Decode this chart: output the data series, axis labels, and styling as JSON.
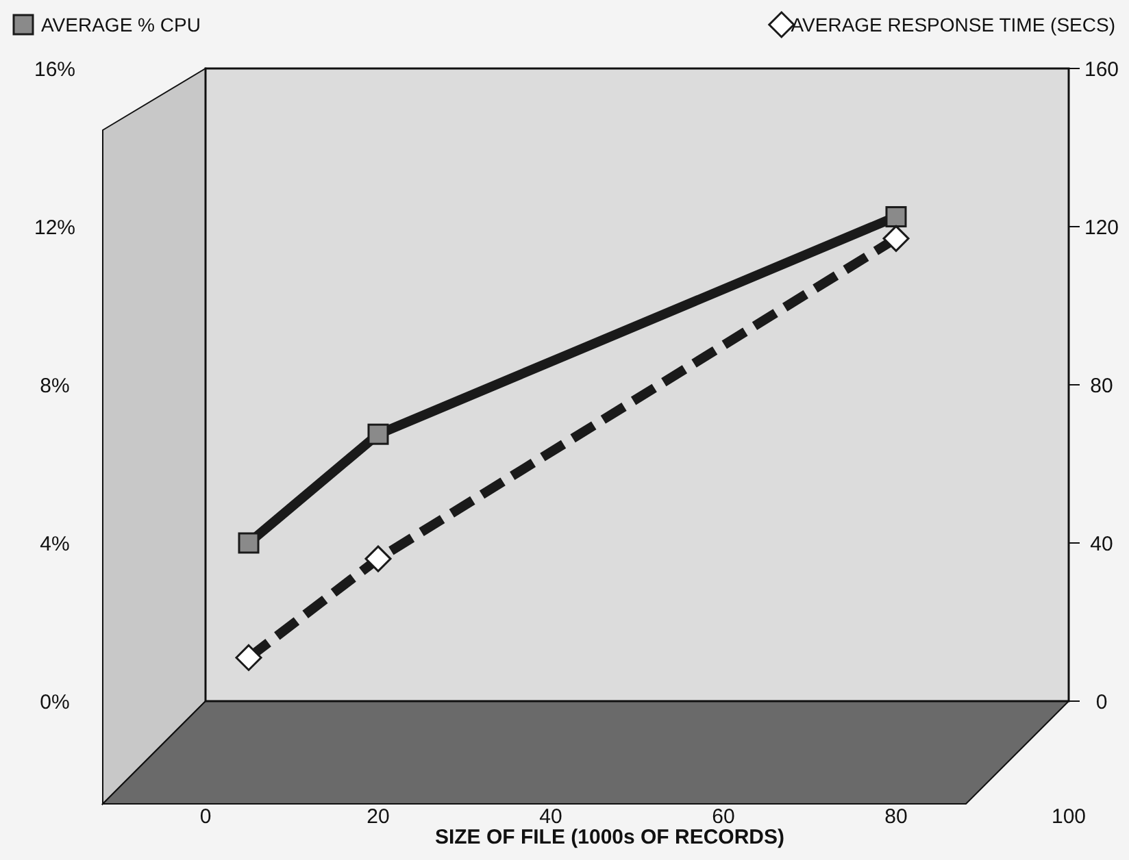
{
  "chart_data": {
    "type": "line",
    "xlabel": "SIZE OF FILE (1000s OF RECORDS)",
    "x": [
      5,
      20,
      80
    ],
    "series": [
      {
        "name": "AVERAGE % CPU",
        "color": "#1a1a1a",
        "values": [
          4,
          6.75,
          12.25
        ],
        "marker": "square",
        "line_style": "solid"
      },
      {
        "name": "AVERAGE RESPONSE TIME (SECS)",
        "color": "#1a1a1a",
        "values": [
          11,
          36,
          117
        ],
        "marker": "diamond",
        "line_style": "dashed",
        "axis": "y2"
      }
    ],
    "xlim": [
      0,
      100
    ],
    "xticks": [
      0,
      20,
      40,
      60,
      80,
      100
    ],
    "ylim": [
      0,
      16
    ],
    "yticks": [
      {
        "value": 0,
        "label": "0%"
      },
      {
        "value": 4,
        "label": "4%"
      },
      {
        "value": 8,
        "label": "8%"
      },
      {
        "value": 12,
        "label": "12%"
      },
      {
        "value": 16,
        "label": "16%"
      }
    ],
    "y2lim": [
      0,
      160
    ],
    "y2ticks": [
      0,
      40,
      80,
      120,
      160
    ],
    "legend": "top",
    "grid": false
  }
}
